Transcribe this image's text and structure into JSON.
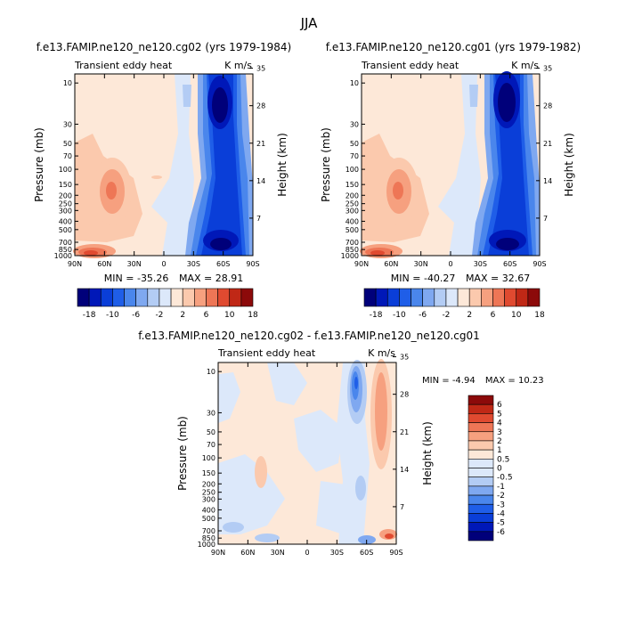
{
  "figure_title": "JJA",
  "colors": {
    "palette": [
      "#00007a",
      "#0018b8",
      "#0a3ed8",
      "#1f5ee8",
      "#4a86ec",
      "#7fa8f0",
      "#b3ccf4",
      "#dce8fa",
      "#fde8d8",
      "#fbc9ad",
      "#f6a07f",
      "#ee7656",
      "#e04a30",
      "#c02816",
      "#8c0a0a"
    ]
  },
  "chart_data": [
    {
      "type": "heatmap",
      "title": "f.e13.FAMIP.ne120_ne120.cg02 (yrs 1979-1984)",
      "subtitle_left": "Transient eddy heat",
      "subtitle_right": "K m/s",
      "ylabel": "Pressure (mb)",
      "ylabel_right": "Height (km)",
      "x_ticks": [
        "90N",
        "60N",
        "30N",
        "0",
        "30S",
        "60S",
        "90S"
      ],
      "y_ticks": [
        "10",
        "30",
        "50",
        "70",
        "100",
        "150",
        "200",
        "250",
        "300",
        "400",
        "500",
        "700",
        "850",
        "1000"
      ],
      "y_ticks_right": [
        "35",
        "28",
        "21",
        "14",
        "7"
      ],
      "stats": {
        "min_label": "MIN =",
        "min": "-35.26",
        "max_label": "MAX =",
        "max": "28.91"
      },
      "colorbar": {
        "labels": [
          "-18",
          "-10",
          "-6",
          "-2",
          "2",
          "6",
          "10",
          "18"
        ]
      }
    },
    {
      "type": "heatmap",
      "title": "f.e13.FAMIP.ne120_ne120.cg01 (yrs 1979-1982)",
      "subtitle_left": "Transient eddy heat",
      "subtitle_right": "K m/s",
      "ylabel": "Pressure (mb)",
      "ylabel_right": "Height (km)",
      "x_ticks": [
        "90N",
        "60N",
        "30N",
        "0",
        "30S",
        "60S",
        "90S"
      ],
      "y_ticks": [
        "10",
        "30",
        "50",
        "70",
        "100",
        "150",
        "200",
        "250",
        "300",
        "400",
        "500",
        "700",
        "850",
        "1000"
      ],
      "y_ticks_right": [
        "35",
        "28",
        "21",
        "14",
        "7"
      ],
      "stats": {
        "min_label": "MIN =",
        "min": "-40.27",
        "max_label": "MAX =",
        "max": "32.67"
      },
      "colorbar": {
        "labels": [
          "-18",
          "-10",
          "-6",
          "-2",
          "2",
          "6",
          "10",
          "18"
        ]
      }
    },
    {
      "type": "heatmap",
      "title": "f.e13.FAMIP.ne120_ne120.cg02 - f.e13.FAMIP.ne120_ne120.cg01",
      "subtitle_left": "Transient eddy heat",
      "subtitle_right": "K m/s",
      "ylabel": "Pressure (mb)",
      "ylabel_right": "Height (km)",
      "x_ticks": [
        "90N",
        "60N",
        "30N",
        "0",
        "30S",
        "60S",
        "90S"
      ],
      "y_ticks": [
        "10",
        "30",
        "50",
        "70",
        "100",
        "150",
        "200",
        "250",
        "300",
        "400",
        "500",
        "700",
        "850",
        "1000"
      ],
      "y_ticks_right": [
        "35",
        "28",
        "21",
        "14",
        "7"
      ],
      "stats": {
        "min_label": "MIN =",
        "min": "-4.94",
        "max_label": "MAX =",
        "max": "10.23"
      },
      "colorbar": {
        "labels": [
          "6",
          "5",
          "4",
          "3",
          "2",
          "1",
          "0.5",
          "0",
          "-0.5",
          "-1",
          "-2",
          "-3",
          "-4",
          "-5",
          "-6"
        ]
      }
    }
  ]
}
